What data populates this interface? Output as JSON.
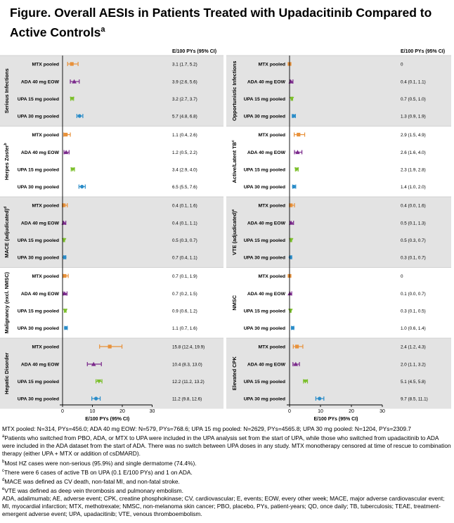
{
  "title": "Figure. Overall AESIs in Patients Treated with Upadacitinib Compared to Active Controls",
  "title_sup": "a",
  "colors": {
    "MTX": "#e8913a",
    "ADA": "#7b2a8c",
    "UPA15": "#7bbf2a",
    "UPA30": "#2a8cc8",
    "band": "#e3e3e3"
  },
  "chart_data": {
    "type": "forest",
    "rate_header": "E/100 PYs (95% CI)",
    "xlabel": "E/100 PYs (95%  CI)",
    "xticks": [
      "0",
      "10",
      "20",
      "30"
    ],
    "xlim": [
      0,
      30
    ],
    "left_panels": [
      {
        "label": "Serious Infections",
        "sup": "",
        "shaded": true,
        "rows": [
          {
            "arm": "MTX pooled",
            "est": 3.1,
            "lo": 1.7,
            "hi": 5.2,
            "text": "3.1 (1.7, 5.2)"
          },
          {
            "arm": "ADA 40 mg EOW",
            "est": 3.9,
            "lo": 2.6,
            "hi": 5.6,
            "text": "3.9 (2.6, 5.6)"
          },
          {
            "arm": "UPA 15 mg pooled",
            "est": 3.2,
            "lo": 2.7,
            "hi": 3.7,
            "text": "3.2 (2.7, 3.7)"
          },
          {
            "arm": "UPA 30 mg pooled",
            "est": 5.7,
            "lo": 4.8,
            "hi": 6.8,
            "text": "5.7 (4.8, 6.8)"
          }
        ]
      },
      {
        "label": "Herpes Zoster",
        "sup": "b",
        "shaded": false,
        "rows": [
          {
            "arm": "MTX pooled",
            "est": 1.1,
            "lo": 0.4,
            "hi": 2.6,
            "text": "1.1 (0.4, 2.6)"
          },
          {
            "arm": "ADA 40 mg EOW",
            "est": 1.2,
            "lo": 0.5,
            "hi": 2.2,
            "text": "1.2 (0.5, 2.2)"
          },
          {
            "arm": "UPA 15 mg pooled",
            "est": 3.4,
            "lo": 2.9,
            "hi": 4.0,
            "text": "3.4 (2.9, 4.0)"
          },
          {
            "arm": "UPA 30 mg pooled",
            "est": 6.5,
            "lo": 5.5,
            "hi": 7.6,
            "text": "6.5 (5.5, 7.6)"
          }
        ]
      },
      {
        "label": "MACE (adjudicated)",
        "sup": "d",
        "shaded": true,
        "rows": [
          {
            "arm": "MTX pooled",
            "est": 0.4,
            "lo": 0.1,
            "hi": 1.6,
            "text": "0.4 (0.1, 1.6)"
          },
          {
            "arm": "ADA 40 mg EOW",
            "est": 0.4,
            "lo": 0.1,
            "hi": 1.1,
            "text": "0.4 (0.1, 1.1)"
          },
          {
            "arm": "UPA 15 mg pooled",
            "est": 0.5,
            "lo": 0.3,
            "hi": 0.7,
            "text": "0.5 (0.3, 0.7)"
          },
          {
            "arm": "UPA 30 mg pooled",
            "est": 0.7,
            "lo": 0.4,
            "hi": 1.1,
            "text": "0.7 (0.4, 1.1)"
          }
        ]
      },
      {
        "label": "Malignancy (excl. NMSC)",
        "sup": "",
        "shaded": false,
        "rows": [
          {
            "arm": "MTX pooled",
            "est": 0.7,
            "lo": 0.1,
            "hi": 1.9,
            "text": "0.7 (0.1, 1.9)"
          },
          {
            "arm": "ADA 40 mg EOW",
            "est": 0.7,
            "lo": 0.2,
            "hi": 1.5,
            "text": "0.7 (0.2, 1.5)"
          },
          {
            "arm": "UPA 15 mg pooled",
            "est": 0.9,
            "lo": 0.6,
            "hi": 1.2,
            "text": "0.9 (0.6, 1.2)"
          },
          {
            "arm": "UPA 30 mg pooled",
            "est": 1.1,
            "lo": 0.7,
            "hi": 1.6,
            "text": "1.1 (0.7, 1.6)"
          }
        ]
      },
      {
        "label": "Hepatic Disorder",
        "sup": "",
        "shaded": true,
        "rows": [
          {
            "arm": "MTX pooled",
            "est": 15.8,
            "lo": 12.4,
            "hi": 19.9,
            "text": "15.8 (12.4, 19.9)"
          },
          {
            "arm": "ADA 40 mg EOW",
            "est": 10.4,
            "lo": 8.3,
            "hi": 13.0,
            "text": "10.4 (8.3, 13.0)"
          },
          {
            "arm": "UPA 15 mg pooled",
            "est": 12.2,
            "lo": 11.2,
            "hi": 13.2,
            "text": "12.2 (11.2, 13.2)"
          },
          {
            "arm": "UPA 30 mg pooled",
            "est": 11.2,
            "lo": 9.8,
            "hi": 12.6,
            "text": "11.2 (9.8, 12.6)"
          }
        ]
      }
    ],
    "right_panels": [
      {
        "label": "Opportunistic Infections",
        "sup": "",
        "shaded": true,
        "rows": [
          {
            "arm": "MTX pooled",
            "est": 0,
            "lo": 0,
            "hi": 0,
            "text": "0"
          },
          {
            "arm": "ADA 40 mg EOW",
            "est": 0.4,
            "lo": 0.1,
            "hi": 1.1,
            "text": "0.4 (0.1, 1.1)"
          },
          {
            "arm": "UPA 15 mg pooled",
            "est": 0.7,
            "lo": 0.5,
            "hi": 1.0,
            "text": "0.7 (0.5, 1.0)"
          },
          {
            "arm": "UPA 30 mg pooled",
            "est": 1.3,
            "lo": 0.9,
            "hi": 1.9,
            "text": "1.3 (0.9, 1.9)"
          }
        ]
      },
      {
        "label": "Active/Latent TB",
        "sup": "c",
        "shaded": false,
        "rows": [
          {
            "arm": "MTX pooled",
            "est": 2.9,
            "lo": 1.5,
            "hi": 4.9,
            "text": "2.9 (1.5, 4.9)"
          },
          {
            "arm": "ADA 40 mg EOW",
            "est": 2.6,
            "lo": 1.6,
            "hi": 4.0,
            "text": "2.6 (1.6, 4.0)"
          },
          {
            "arm": "UPA 15 mg pooled",
            "est": 2.3,
            "lo": 1.9,
            "hi": 2.8,
            "text": "2.3 (1.9, 2.8)"
          },
          {
            "arm": "UPA 30 mg pooled",
            "est": 1.4,
            "lo": 1.0,
            "hi": 2.0,
            "text": "1.4 (1.0, 2.0)"
          }
        ]
      },
      {
        "label": "VTE (adjudicated)",
        "sup": "e",
        "shaded": true,
        "rows": [
          {
            "arm": "MTX pooled",
            "est": 0.4,
            "lo": 0.0,
            "hi": 1.6,
            "text": "0.4 (0.0, 1.6)"
          },
          {
            "arm": "ADA 40 mg EOW",
            "est": 0.5,
            "lo": 0.1,
            "hi": 1.3,
            "text": "0.5 (0.1, 1.3)"
          },
          {
            "arm": "UPA 15 mg pooled",
            "est": 0.5,
            "lo": 0.3,
            "hi": 0.7,
            "text": "0.5 (0.3, 0.7)"
          },
          {
            "arm": "UPA 30 mg pooled",
            "est": 0.3,
            "lo": 0.1,
            "hi": 0.7,
            "text": "0.3 (0.1, 0.7)"
          }
        ]
      },
      {
        "label": "NMSC",
        "sup": "",
        "shaded": false,
        "rows": [
          {
            "arm": "MTX pooled",
            "est": 0,
            "lo": 0,
            "hi": 0,
            "text": "0"
          },
          {
            "arm": "ADA 40 mg EOW",
            "est": 0.1,
            "lo": 0.0,
            "hi": 0.7,
            "text": "0.1 (0.0, 0.7)"
          },
          {
            "arm": "UPA 15 mg pooled",
            "est": 0.3,
            "lo": 0.1,
            "hi": 0.5,
            "text": "0.3 (0.1, 0.5)"
          },
          {
            "arm": "UPA 30 mg pooled",
            "est": 1.0,
            "lo": 0.6,
            "hi": 1.4,
            "text": "1.0 (0.6, 1.4)"
          }
        ]
      },
      {
        "label": "Elevated CPK",
        "sup": "",
        "shaded": true,
        "rows": [
          {
            "arm": "MTX pooled",
            "est": 2.4,
            "lo": 1.2,
            "hi": 4.3,
            "text": "2.4 (1.2, 4.3)"
          },
          {
            "arm": "ADA 40 mg EOW",
            "est": 2.0,
            "lo": 1.1,
            "hi": 3.2,
            "text": "2.0 (1.1, 3.2)"
          },
          {
            "arm": "UPA 15 mg pooled",
            "est": 5.1,
            "lo": 4.5,
            "hi": 5.8,
            "text": "5.1 (4.5, 5.8)"
          },
          {
            "arm": "UPA 30 mg pooled",
            "est": 9.7,
            "lo": 8.5,
            "hi": 11.1,
            "text": "9.7 (8.5, 11.1)"
          }
        ]
      }
    ]
  },
  "footnotes": {
    "n_line": "MTX pooled: N=314, PYs=456.0; ADA 40 mg EOW: N=579, PYs=768.6; UPA 15 mg pooled: N=2629, PYs=4565.8; UPA 30 mg pooled: N=1204, PYs=2309.7",
    "a": "Patients who switched from PBO, ADA, or MTX to UPA were included in the UPA analysis set from the start of UPA, while those who switched from upadacitinib to ADA were included in the ADA dataset from the start of ADA. There was no switch between UPA doses in any study. MTX monotherapy censored at time of rescue to combination therapy (either UPA +  MTX or addition of csDMARD).",
    "b": "Most HZ cases were non-serious  (95.9%) and single dermatome (74.4%).",
    "c": "There were 6 cases of active TB on UPA (0.1 E/100 PYs) and 1 on ADA.",
    "d": "MACE was defined as CV death, non-fatal  MI, and non-fatal stroke.",
    "e": "VTE was defined as deep vein thrombosis and pulmonary embolism.",
    "abbrev": "ADA, adalimumab; AE, adverse event;  CPK, creatine phosphokinase; CV, cardiovascular; E, events; EOW, every other week; MACE, major adverse cardiovascular event; MI, myocardial infarction; MTX, methotrexate; NMSC, non-melanoma skin cancer; PBO, placebo, PYs, patient-years; QD, once daily; TB, tuberculosis; TEAE, treatment-emergent adverse event; UPA, upadacitinib;  VTE, venous thromboembolism."
  }
}
